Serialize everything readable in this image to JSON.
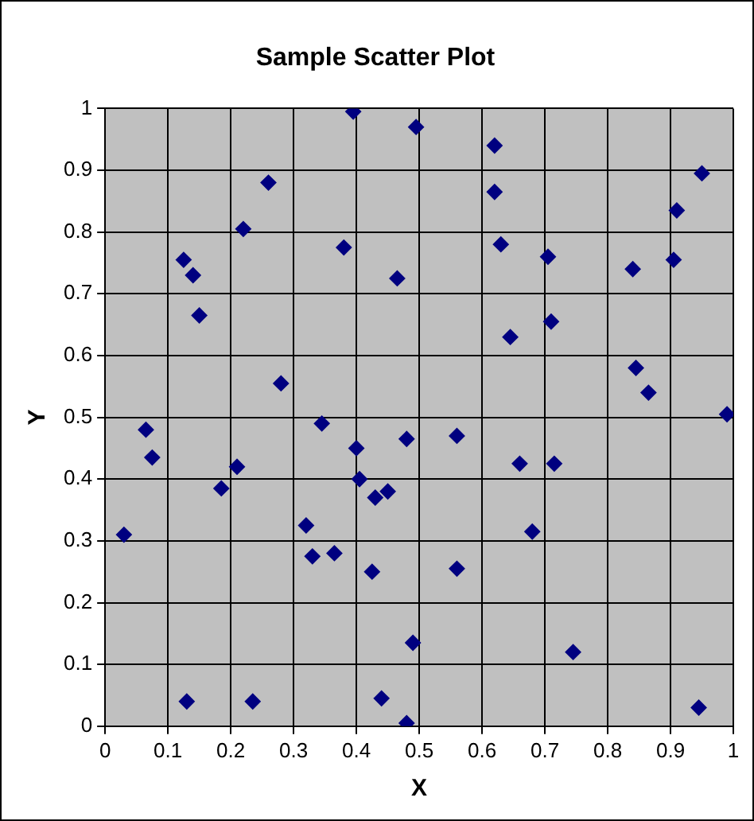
{
  "chart_data": {
    "type": "scatter",
    "title": "Sample Scatter Plot",
    "xlabel": "X",
    "ylabel": "Y",
    "series": [
      {
        "color": "#000080",
        "x": [
          0.03,
          0.065,
          0.075,
          0.125,
          0.14,
          0.15,
          0.13,
          0.185,
          0.21,
          0.22,
          0.26,
          0.235,
          0.28,
          0.32,
          0.33,
          0.345,
          0.365,
          0.38,
          0.395,
          0.4,
          0.405,
          0.425,
          0.43,
          0.44,
          0.45,
          0.465,
          0.48,
          0.48,
          0.495,
          0.49,
          0.56,
          0.56,
          0.62,
          0.62,
          0.63,
          0.645,
          0.66,
          0.68,
          0.705,
          0.71,
          0.715,
          0.745,
          0.84,
          0.845,
          0.865,
          0.905,
          0.91,
          0.945,
          0.95,
          0.99
        ],
        "values": [
          0.31,
          0.48,
          0.435,
          0.755,
          0.73,
          0.665,
          0.04,
          0.385,
          0.42,
          0.805,
          0.88,
          0.04,
          0.555,
          0.325,
          0.275,
          0.49,
          0.28,
          0.775,
          0.995,
          0.45,
          0.4,
          0.25,
          0.37,
          0.045,
          0.38,
          0.725,
          0.465,
          0.005,
          0.97,
          0.135,
          0.47,
          0.255,
          0.94,
          0.865,
          0.78,
          0.63,
          0.425,
          0.315,
          0.76,
          0.655,
          0.425,
          0.12,
          0.74,
          0.58,
          0.54,
          0.755,
          0.835,
          0.03,
          0.895,
          0.505
        ]
      }
    ],
    "xlim": [
      0,
      1
    ],
    "xticks": [
      0,
      0.1,
      0.2,
      0.3,
      0.4,
      0.5,
      0.6,
      0.7,
      0.8,
      0.9,
      1
    ],
    "ylim": [
      0,
      1
    ],
    "yticks": [
      0,
      0.1,
      0.2,
      0.3,
      0.4,
      0.5,
      0.6,
      0.7,
      0.8,
      0.9,
      1
    ],
    "grid": true,
    "legend": false,
    "marker": "diamond"
  }
}
